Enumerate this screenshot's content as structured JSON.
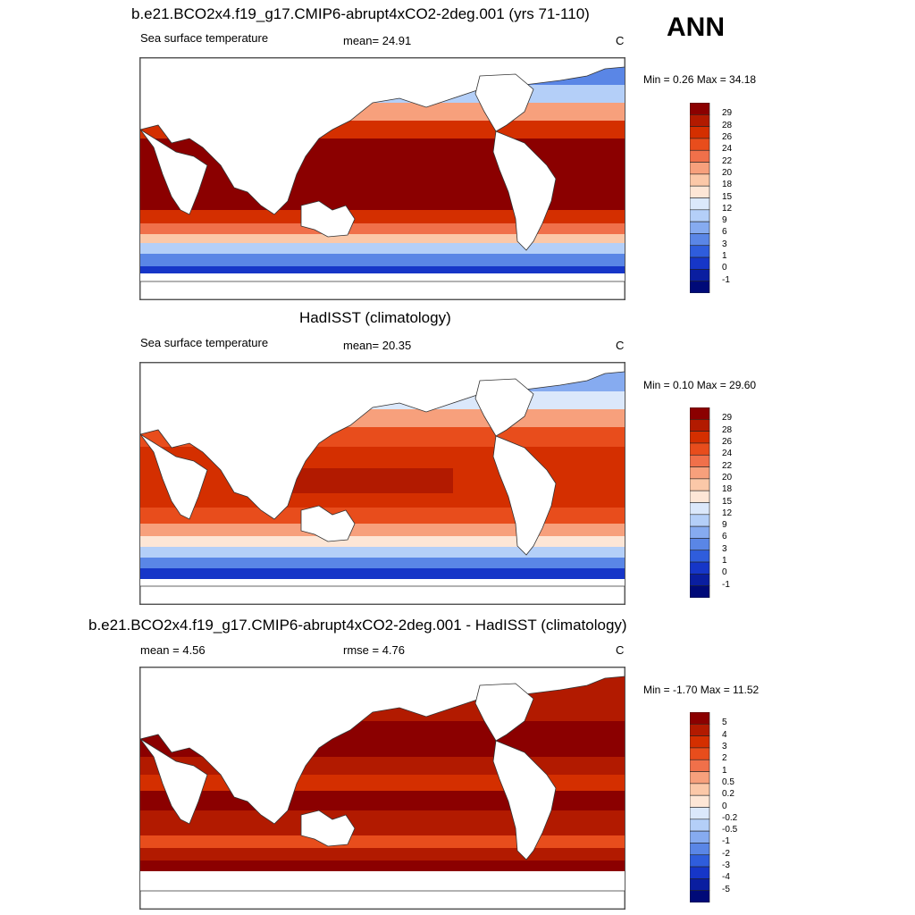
{
  "season": "ANN",
  "panels": [
    {
      "title": "b.e21.BCO2x4.f19_g17.CMIP6-abrupt4xCO2-2deg.001 (yrs 71-110)",
      "left_label": "Sea surface temperature",
      "center_label": "mean=  24.91",
      "units": "C",
      "minmax": "Min =   0.26 Max =  34.18",
      "variant": "model"
    },
    {
      "title": "HadISST (climatology)",
      "left_label": "Sea surface temperature",
      "center_label": "mean=  20.35",
      "units": "C",
      "minmax": "Min =   0.10 Max =  29.60",
      "variant": "obs"
    },
    {
      "title": "b.e21.BCO2x4.f19_g17.CMIP6-abrupt4xCO2-2deg.001 - HadISST (climatology)",
      "left_label": "mean =   4.56",
      "center_label": "rmse =   4.76",
      "units": "C",
      "minmax": "Min =  -1.70 Max =  11.52",
      "variant": "diff"
    }
  ],
  "colorbar_sst": {
    "labels": [
      "29",
      "28",
      "26",
      "24",
      "22",
      "20",
      "18",
      "15",
      "12",
      "9",
      "6",
      "3",
      "1",
      "0",
      "-1"
    ],
    "colors": [
      "#8b0000",
      "#b21a00",
      "#d42f00",
      "#e84d1c",
      "#f0704a",
      "#f7a07c",
      "#fbc8a8",
      "#fde6d6",
      "#dbe8fb",
      "#b4cff8",
      "#86abf0",
      "#5a86e6",
      "#2f5ddc",
      "#1636c8",
      "#0a1ea0",
      "#000a78"
    ]
  },
  "colorbar_diff": {
    "labels": [
      "5",
      "4",
      "3",
      "2",
      "1",
      "0.5",
      "0.2",
      "0",
      "-0.2",
      "-0.5",
      "-1",
      "-2",
      "-3",
      "-4",
      "-5"
    ],
    "colors": [
      "#8b0000",
      "#b21a00",
      "#d42f00",
      "#e84d1c",
      "#f0704a",
      "#f7a07c",
      "#fbc8a8",
      "#fde6d6",
      "#dbe8fb",
      "#b4cff8",
      "#86abf0",
      "#5a86e6",
      "#2f5ddc",
      "#1636c8",
      "#0a1ea0",
      "#000a78"
    ]
  }
}
